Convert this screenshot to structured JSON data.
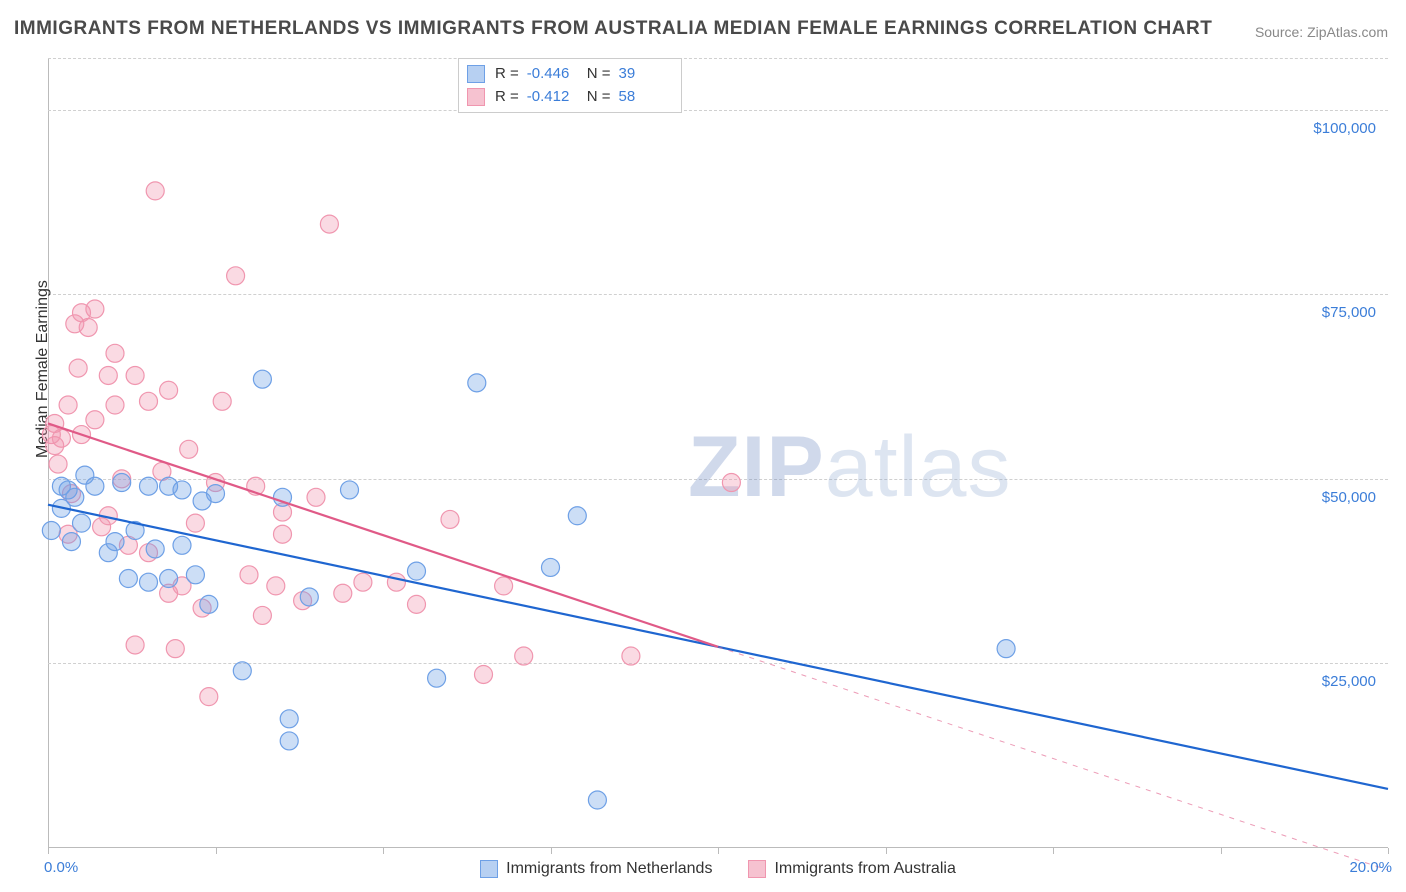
{
  "title": "IMMIGRANTS FROM NETHERLANDS VS IMMIGRANTS FROM AUSTRALIA MEDIAN FEMALE EARNINGS CORRELATION CHART",
  "source_label": "Source:",
  "source_value": "ZipAtlas.com",
  "watermark_a": "ZIP",
  "watermark_b": "atlas",
  "chart": {
    "type": "scatter",
    "y_label": "Median Female Earnings",
    "x_min": 0.0,
    "x_max": 20.0,
    "y_min": 0,
    "y_max": 107000,
    "y_ticks": [
      25000,
      50000,
      75000,
      100000
    ],
    "y_tick_labels": [
      "$25,000",
      "$50,000",
      "$75,000",
      "$100,000"
    ],
    "x_ticks": [
      0,
      2.5,
      5,
      7.5,
      10,
      12.5,
      15,
      17.5,
      20
    ],
    "x_tick_labels_shown": {
      "0": "0.0%",
      "20": "20.0%"
    },
    "grid_color": "#d0d0d0",
    "axis_color": "#bbbbbb",
    "tick_label_color": "#3b7dd8",
    "background_color": "#ffffff",
    "series": [
      {
        "name": "Immigrants from Netherlands",
        "color_fill": "rgba(110,160,230,0.35)",
        "color_stroke": "#6ea0e6",
        "swatch_fill": "#b7d0f2",
        "swatch_border": "#6ea0e6",
        "R": "-0.446",
        "N": "39",
        "marker_radius": 9,
        "regression": {
          "x1": 0,
          "y1": 46500,
          "x2": 20,
          "y2": 8000,
          "solid_until_x": 20,
          "color": "#1f66d0",
          "width": 2.2
        },
        "points": [
          [
            0.05,
            43000
          ],
          [
            0.2,
            49000
          ],
          [
            0.2,
            46000
          ],
          [
            0.3,
            48500
          ],
          [
            0.35,
            41500
          ],
          [
            0.4,
            47500
          ],
          [
            0.5,
            44000
          ],
          [
            0.55,
            50500
          ],
          [
            0.7,
            49000
          ],
          [
            0.9,
            40000
          ],
          [
            1.0,
            41500
          ],
          [
            1.1,
            49500
          ],
          [
            1.2,
            36500
          ],
          [
            1.3,
            43000
          ],
          [
            1.5,
            36000
          ],
          [
            1.5,
            49000
          ],
          [
            1.6,
            40500
          ],
          [
            1.8,
            49000
          ],
          [
            1.8,
            36500
          ],
          [
            2.0,
            48500
          ],
          [
            2.0,
            41000
          ],
          [
            2.2,
            37000
          ],
          [
            2.3,
            47000
          ],
          [
            2.4,
            33000
          ],
          [
            2.5,
            48000
          ],
          [
            2.9,
            24000
          ],
          [
            3.2,
            63500
          ],
          [
            3.5,
            47500
          ],
          [
            3.6,
            14500
          ],
          [
            3.6,
            17500
          ],
          [
            3.9,
            34000
          ],
          [
            4.5,
            48500
          ],
          [
            5.5,
            37500
          ],
          [
            5.8,
            23000
          ],
          [
            6.4,
            63000
          ],
          [
            7.5,
            38000
          ],
          [
            7.9,
            45000
          ],
          [
            8.2,
            6500
          ],
          [
            14.3,
            27000
          ]
        ]
      },
      {
        "name": "Immigrants from Australia",
        "color_fill": "rgba(240,150,175,0.35)",
        "color_stroke": "#f096af",
        "swatch_fill": "#f6c2d0",
        "swatch_border": "#f096af",
        "R": "-0.412",
        "N": "58",
        "marker_radius": 9,
        "regression": {
          "x1": 0,
          "y1": 57500,
          "x2": 20,
          "y2": -3000,
          "solid_until_x": 10,
          "color": "#e05a87",
          "width": 2.2
        },
        "points": [
          [
            0.05,
            56000
          ],
          [
            0.1,
            54500
          ],
          [
            0.1,
            57500
          ],
          [
            0.15,
            52000
          ],
          [
            0.2,
            55500
          ],
          [
            0.3,
            42500
          ],
          [
            0.3,
            60000
          ],
          [
            0.35,
            48000
          ],
          [
            0.4,
            71000
          ],
          [
            0.45,
            65000
          ],
          [
            0.5,
            56000
          ],
          [
            0.5,
            72500
          ],
          [
            0.6,
            70500
          ],
          [
            0.7,
            73000
          ],
          [
            0.7,
            58000
          ],
          [
            0.8,
            43500
          ],
          [
            0.9,
            64000
          ],
          [
            0.9,
            45000
          ],
          [
            1.0,
            60000
          ],
          [
            1.0,
            67000
          ],
          [
            1.1,
            50000
          ],
          [
            1.2,
            41000
          ],
          [
            1.3,
            64000
          ],
          [
            1.3,
            27500
          ],
          [
            1.5,
            60500
          ],
          [
            1.5,
            40000
          ],
          [
            1.6,
            89000
          ],
          [
            1.7,
            51000
          ],
          [
            1.8,
            34500
          ],
          [
            1.8,
            62000
          ],
          [
            1.9,
            27000
          ],
          [
            2.0,
            35500
          ],
          [
            2.1,
            54000
          ],
          [
            2.2,
            44000
          ],
          [
            2.3,
            32500
          ],
          [
            2.4,
            20500
          ],
          [
            2.5,
            49500
          ],
          [
            2.6,
            60500
          ],
          [
            2.8,
            77500
          ],
          [
            3.0,
            37000
          ],
          [
            3.1,
            49000
          ],
          [
            3.2,
            31500
          ],
          [
            3.4,
            35500
          ],
          [
            3.5,
            42500
          ],
          [
            3.5,
            45500
          ],
          [
            3.8,
            33500
          ],
          [
            4.0,
            47500
          ],
          [
            4.2,
            84500
          ],
          [
            4.4,
            34500
          ],
          [
            4.7,
            36000
          ],
          [
            5.2,
            36000
          ],
          [
            5.5,
            33000
          ],
          [
            6.0,
            44500
          ],
          [
            6.5,
            23500
          ],
          [
            6.8,
            35500
          ],
          [
            7.1,
            26000
          ],
          [
            8.7,
            26000
          ],
          [
            10.2,
            49500
          ]
        ]
      }
    ]
  },
  "stats_labels": {
    "R": "R =",
    "N": "N ="
  }
}
